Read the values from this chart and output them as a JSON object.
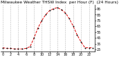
{
  "hours": [
    0,
    1,
    2,
    3,
    4,
    5,
    6,
    7,
    8,
    9,
    10,
    11,
    12,
    13,
    14,
    15,
    16,
    17,
    18,
    19,
    20,
    21,
    22,
    23
  ],
  "values": [
    28,
    27,
    27,
    26,
    26,
    26,
    27,
    30,
    45,
    62,
    75,
    85,
    92,
    95,
    97,
    93,
    88,
    78,
    65,
    50,
    38,
    28,
    28,
    28
  ],
  "title": "Milwaukee Weather THSW Index  per Hour (F)  (24 Hours)",
  "line_color": "#dd0000",
  "marker_color": "#111111",
  "grid_color": "#aaaaaa",
  "bg_color": "#ffffff",
  "plot_bg": "#ffffff",
  "ylim": [
    22,
    102
  ],
  "ytick_vals": [
    25,
    35,
    45,
    55,
    65,
    75,
    85,
    95
  ],
  "xtick_vals": [
    0,
    2,
    4,
    6,
    8,
    10,
    12,
    14,
    16,
    18,
    20,
    22
  ],
  "title_fontsize": 4.2,
  "tick_fontsize": 3.5,
  "xlim": [
    -0.5,
    23.5
  ]
}
